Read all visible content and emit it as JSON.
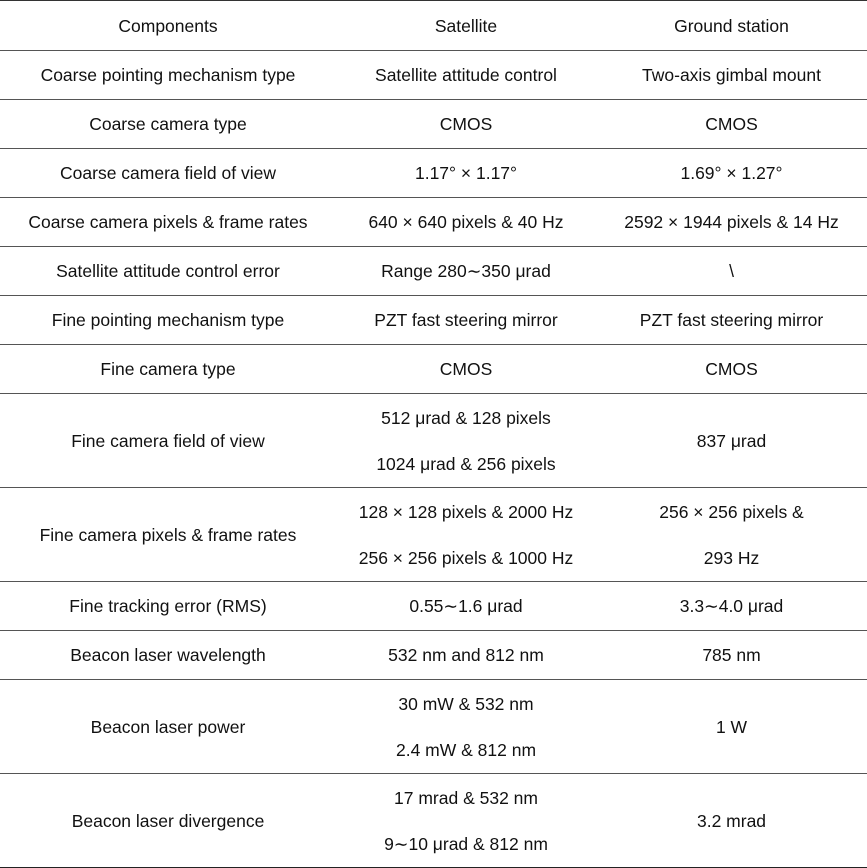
{
  "table": {
    "headers": [
      "Components",
      "Satellite",
      "Ground station"
    ],
    "rows": [
      {
        "component": [
          "Coarse pointing mechanism type"
        ],
        "satellite": [
          "Satellite attitude control"
        ],
        "ground": [
          "Two-axis gimbal mount"
        ]
      },
      {
        "component": [
          "Coarse camera type"
        ],
        "satellite": [
          "CMOS"
        ],
        "ground": [
          "CMOS"
        ]
      },
      {
        "component": [
          "Coarse camera field of view"
        ],
        "satellite": [
          "1.17° × 1.17°"
        ],
        "ground": [
          "1.69° × 1.27°"
        ]
      },
      {
        "component": [
          "Coarse camera pixels & frame rates"
        ],
        "satellite": [
          "640 × 640 pixels & 40 Hz"
        ],
        "ground": [
          "2592 × 1944 pixels & 14 Hz"
        ]
      },
      {
        "component": [
          "Satellite attitude control error"
        ],
        "satellite": [
          "Range 280∼350 μrad"
        ],
        "ground": [
          "\\"
        ]
      },
      {
        "component": [
          "Fine pointing mechanism type"
        ],
        "satellite": [
          "PZT fast steering mirror"
        ],
        "ground": [
          "PZT fast steering mirror"
        ]
      },
      {
        "component": [
          "Fine camera type"
        ],
        "satellite": [
          "CMOS"
        ],
        "ground": [
          "CMOS"
        ]
      },
      {
        "component": [
          "Fine camera field of view"
        ],
        "satellite": [
          "512 μrad & 128 pixels",
          "1024 μrad & 256 pixels"
        ],
        "ground": [
          "837 μrad"
        ]
      },
      {
        "component": [
          "Fine camera pixels & frame rates"
        ],
        "satellite": [
          "128 × 128 pixels & 2000 Hz",
          "256 × 256 pixels & 1000 Hz"
        ],
        "ground": [
          "256 × 256 pixels &",
          "293 Hz"
        ]
      },
      {
        "component": [
          "Fine tracking error (RMS)"
        ],
        "satellite": [
          "0.55∼1.6 μrad"
        ],
        "ground": [
          "3.3∼4.0 μrad"
        ]
      },
      {
        "component": [
          "Beacon laser wavelength"
        ],
        "satellite": [
          "532 nm and 812 nm"
        ],
        "ground": [
          "785 nm"
        ]
      },
      {
        "component": [
          "Beacon laser power"
        ],
        "satellite": [
          "30 mW & 532 nm",
          "2.4 mW & 812 nm"
        ],
        "ground": [
          "1 W"
        ]
      },
      {
        "component": [
          "Beacon laser divergence"
        ],
        "satellite": [
          "17 mrad & 532 nm",
          "9∼10 μrad & 812 nm"
        ],
        "ground": [
          "3.2 mrad"
        ]
      }
    ]
  }
}
